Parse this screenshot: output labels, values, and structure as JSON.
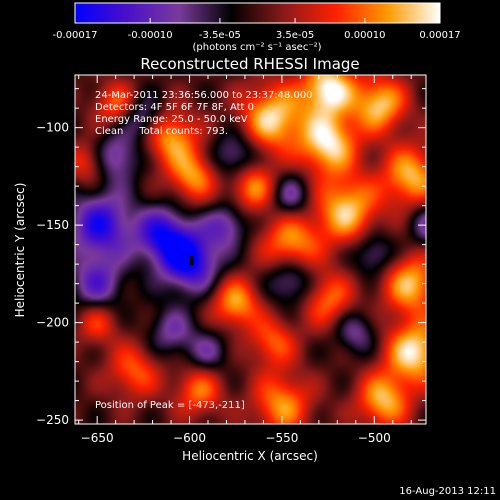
{
  "colorbar": {
    "ticks": [
      "-0.00017",
      "-0.00010",
      "-3.5e-05",
      "3.5e-05",
      "0.00010",
      "0.00017"
    ],
    "tick_values": [
      -0.00017,
      -0.0001,
      -3.5e-05,
      3.5e-05,
      0.0001,
      0.00017
    ],
    "unit_label": "(photons cm⁻² s⁻¹ asec⁻²)",
    "range": [
      -0.00017,
      0.00017
    ],
    "colors": [
      "#0000ff",
      "#4a10c8",
      "#7a3a9a",
      "#000000",
      "#8a1a1a",
      "#ff2000",
      "#ff9a00",
      "#ffffff"
    ]
  },
  "chart_data": {
    "type": "heatmap",
    "title": "Reconstructed RHESSI Image",
    "xlabel": "Heliocentric X (arcsec)",
    "ylabel": "Heliocentric Y (arcsec)",
    "xlim": [
      -662,
      -472
    ],
    "ylim": [
      -252,
      -73
    ],
    "xticks": [
      -650,
      -600,
      -550,
      -500
    ],
    "xtick_labels": [
      "−650",
      "−600",
      "−550",
      "−500"
    ],
    "yticks": [
      -250,
      -200,
      -150,
      -100
    ],
    "ytick_labels": [
      "−250",
      "−200",
      "−150",
      "−100"
    ],
    "annotations": [
      "24-Mar-2011 23:36:56.000 to 23:37:48.000",
      "Detectors: 4F 5F 6F 7F 8F, Att 0",
      "Energy Range: 25.0 - 50.0 keV",
      "Clean     Total counts: 793."
    ],
    "peak_label": "Position of Peak = [-473,-211]",
    "peak": [
      -473,
      -211
    ],
    "min_marker": [
      -599,
      -168
    ],
    "blobs": [
      {
        "x": -525,
        "y": -80,
        "a": 1.0,
        "s": 10
      },
      {
        "x": -555,
        "y": -95,
        "a": 0.9,
        "s": 12
      },
      {
        "x": -525,
        "y": -108,
        "a": 0.95,
        "s": 11
      },
      {
        "x": -497,
        "y": -88,
        "a": 0.85,
        "s": 10
      },
      {
        "x": -480,
        "y": -125,
        "a": 0.8,
        "s": 11
      },
      {
        "x": -515,
        "y": -142,
        "a": 0.85,
        "s": 12
      },
      {
        "x": -545,
        "y": -160,
        "a": 0.75,
        "s": 11
      },
      {
        "x": -566,
        "y": -130,
        "a": 0.7,
        "s": 9
      },
      {
        "x": -610,
        "y": -105,
        "a": 0.75,
        "s": 10
      },
      {
        "x": -598,
        "y": -125,
        "a": 0.7,
        "s": 9
      },
      {
        "x": -640,
        "y": -88,
        "a": 0.55,
        "s": 8
      },
      {
        "x": -655,
        "y": -118,
        "a": 0.5,
        "s": 8
      },
      {
        "x": -480,
        "y": -180,
        "a": 0.8,
        "s": 11
      },
      {
        "x": -525,
        "y": -188,
        "a": 0.6,
        "s": 10
      },
      {
        "x": -575,
        "y": -190,
        "a": 0.75,
        "s": 9
      },
      {
        "x": -555,
        "y": -210,
        "a": 0.55,
        "s": 9
      },
      {
        "x": -478,
        "y": -215,
        "a": 0.95,
        "s": 11
      },
      {
        "x": -495,
        "y": -240,
        "a": 0.8,
        "s": 10
      },
      {
        "x": -550,
        "y": -242,
        "a": 0.7,
        "s": 11
      },
      {
        "x": -595,
        "y": -235,
        "a": 0.6,
        "s": 9
      },
      {
        "x": -630,
        "y": -225,
        "a": 0.55,
        "s": 10
      },
      {
        "x": -650,
        "y": -200,
        "a": 0.45,
        "s": 8
      },
      {
        "x": -600,
        "y": -168,
        "a": -1.0,
        "s": 11
      },
      {
        "x": -615,
        "y": -155,
        "a": -0.8,
        "s": 10
      },
      {
        "x": -648,
        "y": -150,
        "a": -0.85,
        "s": 12
      },
      {
        "x": -640,
        "y": -115,
        "a": -0.6,
        "s": 9
      },
      {
        "x": -650,
        "y": -180,
        "a": -0.6,
        "s": 10
      },
      {
        "x": -625,
        "y": -95,
        "a": -0.5,
        "s": 8
      },
      {
        "x": -575,
        "y": -115,
        "a": -0.55,
        "s": 9
      },
      {
        "x": -580,
        "y": -150,
        "a": -0.55,
        "s": 8
      },
      {
        "x": -545,
        "y": -135,
        "a": -0.5,
        "s": 8
      },
      {
        "x": -545,
        "y": -178,
        "a": -0.6,
        "s": 9
      },
      {
        "x": -500,
        "y": -165,
        "a": -0.5,
        "s": 8
      },
      {
        "x": -510,
        "y": -205,
        "a": -0.45,
        "s": 8
      },
      {
        "x": -610,
        "y": -205,
        "a": -0.45,
        "s": 9
      },
      {
        "x": -590,
        "y": -215,
        "a": -0.4,
        "s": 8
      },
      {
        "x": -470,
        "y": -150,
        "a": -0.5,
        "s": 8
      }
    ]
  },
  "footer": {
    "timestamp": "16-Aug-2013 12:11"
  }
}
